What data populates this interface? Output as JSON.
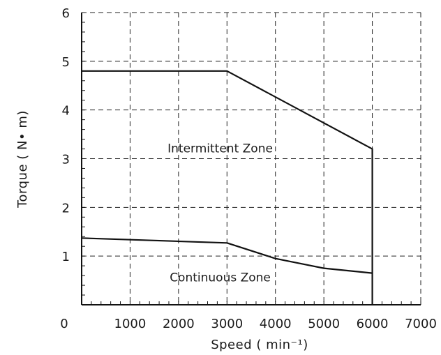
{
  "chart_data": {
    "type": "line",
    "xlabel": "Speed ( min⁻¹)",
    "ylabel": "Torque ( N• m)",
    "xlim": [
      0,
      7000
    ],
    "ylim": [
      0,
      6
    ],
    "x_ticks": [
      0,
      1000,
      2000,
      3000,
      4000,
      5000,
      6000,
      7000
    ],
    "y_ticks": [
      1,
      2,
      3,
      4,
      5,
      6
    ],
    "grid": true,
    "series": [
      {
        "x": [
          0,
          3000,
          6000,
          6000
        ],
        "y": [
          4.8,
          4.8,
          3.2,
          0
        ]
      },
      {
        "x": [
          0,
          3000,
          4000,
          5000,
          6000
        ],
        "y": [
          1.37,
          1.27,
          0.95,
          0.75,
          0.65
        ]
      }
    ],
    "annotations": [
      {
        "text": "Intermittent Zone",
        "x": 4300,
        "y": 3.2
      },
      {
        "text": "Continuous Zone",
        "x": 4300,
        "y": 0.55
      }
    ]
  }
}
